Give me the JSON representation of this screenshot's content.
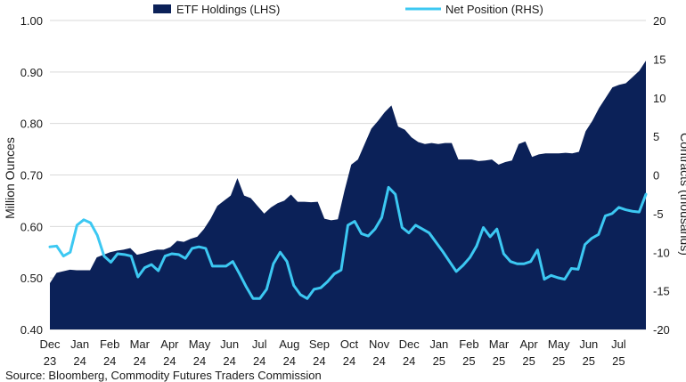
{
  "chart_data": {
    "type": "area",
    "left_axis": {
      "label": "Million Ounces",
      "range": [
        0.4,
        1.0
      ],
      "ticks": [
        "0.40",
        "0.50",
        "0.60",
        "0.70",
        "0.80",
        "0.90",
        "1.00"
      ]
    },
    "right_axis": {
      "label": "Contracts (thousands)",
      "range": [
        -20,
        20
      ],
      "ticks": [
        "-20",
        "-15",
        "-10",
        "-5",
        "0",
        "5",
        "10",
        "15",
        "20"
      ]
    },
    "x_labels": [
      {
        "month": "Dec",
        "year": "23"
      },
      {
        "month": "Jan",
        "year": "24"
      },
      {
        "month": "Feb",
        "year": "24"
      },
      {
        "month": "Mar",
        "year": "24"
      },
      {
        "month": "Apr",
        "year": "24"
      },
      {
        "month": "May",
        "year": "24"
      },
      {
        "month": "Jun",
        "year": "24"
      },
      {
        "month": "Jul",
        "year": "24"
      },
      {
        "month": "Aug",
        "year": "24"
      },
      {
        "month": "Sep",
        "year": "24"
      },
      {
        "month": "Oct",
        "year": "24"
      },
      {
        "month": "Nov",
        "year": "24"
      },
      {
        "month": "Dec",
        "year": "24"
      },
      {
        "month": "Jan",
        "year": "25"
      },
      {
        "month": "Feb",
        "year": "25"
      },
      {
        "month": "Mar",
        "year": "25"
      },
      {
        "month": "Apr",
        "year": "25"
      },
      {
        "month": "May",
        "year": "25"
      },
      {
        "month": "Jun",
        "year": "25"
      },
      {
        "month": "Jul",
        "year": "25"
      }
    ],
    "series": [
      {
        "name": "ETF Holdings (LHS)",
        "kind": "area",
        "axis": "left",
        "color": "#0b2158",
        "values": [
          0.49,
          0.51,
          0.513,
          0.516,
          0.515,
          0.515,
          0.515,
          0.54,
          0.545,
          0.55,
          0.553,
          0.555,
          0.558,
          0.545,
          0.548,
          0.552,
          0.555,
          0.555,
          0.56,
          0.572,
          0.57,
          0.576,
          0.58,
          0.595,
          0.615,
          0.64,
          0.65,
          0.66,
          0.694,
          0.66,
          0.655,
          0.64,
          0.625,
          0.637,
          0.645,
          0.65,
          0.662,
          0.648,
          0.648,
          0.647,
          0.648,
          0.615,
          0.612,
          0.614,
          0.67,
          0.72,
          0.73,
          0.76,
          0.79,
          0.805,
          0.822,
          0.835,
          0.794,
          0.788,
          0.773,
          0.764,
          0.76,
          0.762,
          0.76,
          0.762,
          0.762,
          0.73,
          0.73,
          0.73,
          0.727,
          0.728,
          0.73,
          0.72,
          0.725,
          0.728,
          0.76,
          0.765,
          0.735,
          0.74,
          0.742,
          0.742,
          0.742,
          0.743,
          0.742,
          0.745,
          0.785,
          0.805,
          0.83,
          0.85,
          0.87,
          0.875,
          0.878,
          0.89,
          0.902,
          0.922
        ]
      },
      {
        "name": "Net Position (RHS)",
        "kind": "line",
        "axis": "right",
        "color": "#3cc8f2",
        "values": [
          -9.3,
          -9.2,
          -10.5,
          -10.0,
          -6.5,
          -5.8,
          -6.2,
          -7.8,
          -10.5,
          -11.3,
          -10.2,
          -10.3,
          -10.5,
          -13.2,
          -12.0,
          -11.6,
          -12.4,
          -10.5,
          -10.2,
          -10.3,
          -10.8,
          -9.5,
          -9.3,
          -9.5,
          -11.8,
          -11.8,
          -11.8,
          -11.2,
          -12.8,
          -14.5,
          -16.0,
          -16.0,
          -14.8,
          -11.5,
          -10.0,
          -11.2,
          -14.3,
          -15.5,
          -16.0,
          -14.8,
          -14.6,
          -13.8,
          -12.8,
          -12.3,
          -6.5,
          -6.0,
          -7.6,
          -7.9,
          -7.0,
          -5.5,
          -1.6,
          -2.5,
          -6.8,
          -7.5,
          -6.5,
          -7.0,
          -7.5,
          -8.7,
          -9.9,
          -11.2,
          -12.5,
          -11.7,
          -10.7,
          -9.2,
          -6.8,
          -8.0,
          -7.0,
          -10.2,
          -11.2,
          -11.5,
          -11.5,
          -11.2,
          -9.7,
          -13.5,
          -13.0,
          -13.3,
          -13.5,
          -12.1,
          -12.2,
          -9.0,
          -8.2,
          -7.7,
          -5.3,
          -5.0,
          -4.2,
          -4.5,
          -4.7,
          -4.8,
          -2.5
        ]
      }
    ],
    "legend": "top"
  },
  "source": "Source: Bloomberg, Commodity Futures Traders Commission"
}
